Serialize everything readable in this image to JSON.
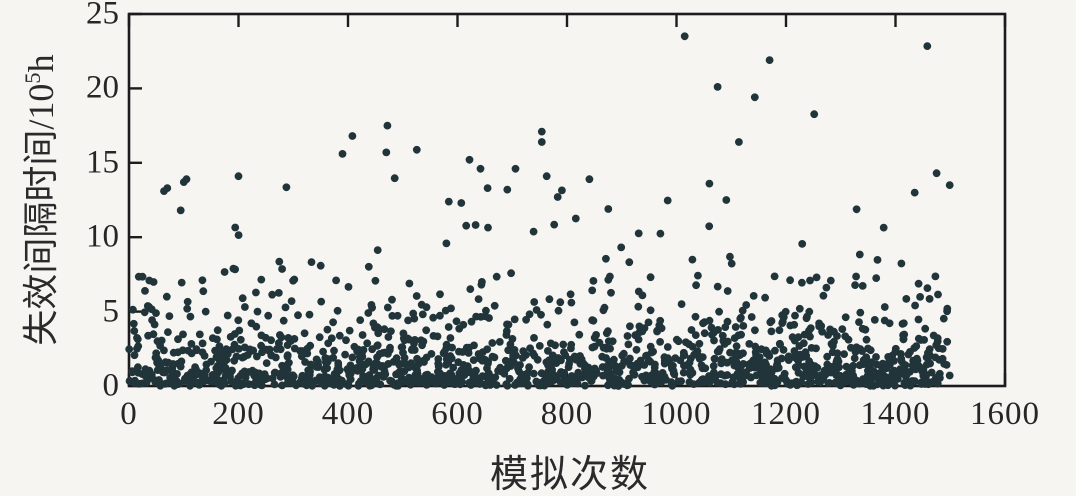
{
  "figure": {
    "background": "#f6f5f2",
    "axis_color": "#1c1c1c",
    "dot_color": "#20343a"
  },
  "chart_data": {
    "type": "scatter",
    "title": "",
    "xlabel": "模拟次数",
    "ylabel_prefix": "失效间隔时间/10",
    "ylabel_sup": "5",
    "ylabel_suffix": "h",
    "xlim": [
      0,
      1600
    ],
    "ylim": [
      0,
      25
    ],
    "x_ticks": [
      0,
      200,
      400,
      600,
      800,
      1000,
      1200,
      1400,
      1600
    ],
    "x_tick_labels": [
      "0",
      "200",
      "400",
      "600",
      "800",
      "1000",
      "1200",
      "1400",
      "1600"
    ],
    "y_ticks": [
      0,
      5,
      10,
      15,
      20,
      25
    ],
    "y_tick_labels": [
      "0",
      "5",
      "10",
      "15",
      "20",
      "25"
    ],
    "grid": false,
    "legend": null,
    "marker": {
      "shape": "circle",
      "radius_px": 3.9,
      "color": "#20343a"
    },
    "n_points": 1500,
    "x_data_range": [
      0,
      1500
    ],
    "y_distribution": {
      "type": "mixture-exponential",
      "components": [
        {
          "weight": 0.88,
          "mean": 1.8
        },
        {
          "weight": 0.12,
          "mean": 5.0
        }
      ],
      "max": 24.0
    },
    "seed": 987654321,
    "notable_points": [
      [
        1015,
        23.5
      ],
      [
        1170,
        21.9
      ],
      [
        1075,
        20.1
      ],
      [
        1143,
        19.4
      ],
      [
        472,
        17.5
      ],
      [
        754,
        17.1
      ],
      [
        408,
        16.8
      ],
      [
        754,
        16.4
      ],
      [
        1114,
        16.4
      ],
      [
        470,
        15.7
      ],
      [
        390,
        15.6
      ],
      [
        622,
        15.2
      ],
      [
        642,
        14.6
      ],
      [
        706,
        14.6
      ],
      [
        1475,
        14.3
      ],
      [
        200,
        14.1
      ],
      [
        763,
        14.1
      ],
      [
        841,
        13.9
      ],
      [
        105,
        13.9
      ],
      [
        1060,
        13.6
      ],
      [
        1499,
        13.5
      ],
      [
        70,
        13.3
      ],
      [
        655,
        13.3
      ],
      [
        691,
        13.2
      ],
      [
        1435,
        13.0
      ],
      [
        1091,
        12.5
      ],
      [
        783,
        12.7
      ],
      [
        607,
        12.3
      ],
      [
        64,
        13.1
      ],
      [
        100,
        13.7
      ]
    ]
  }
}
